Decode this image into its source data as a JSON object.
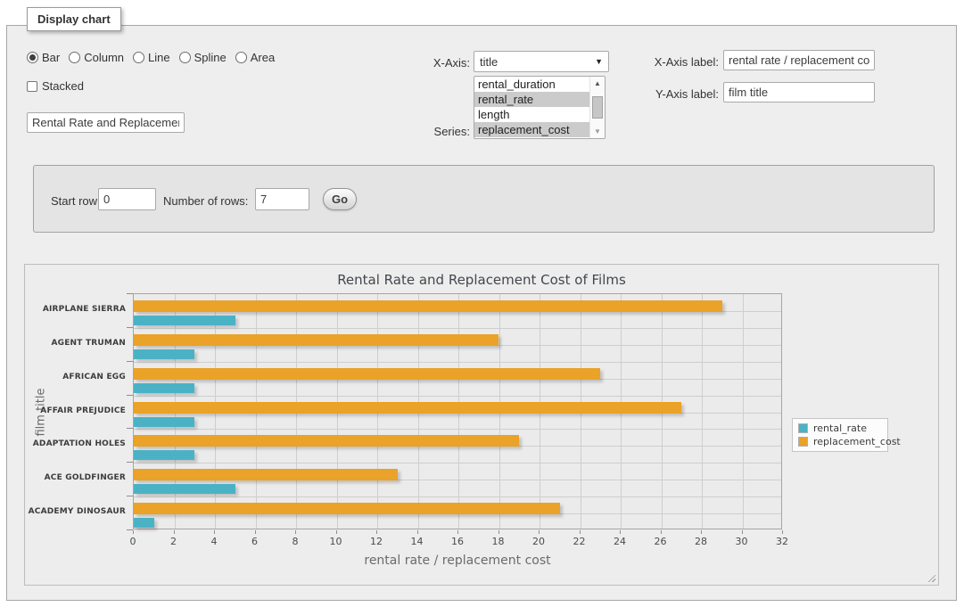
{
  "panel": {
    "legend": "Display chart"
  },
  "icons": {
    "dropdown_arrow": "▼",
    "scroll_up": "▲",
    "scroll_down": "▼"
  },
  "controls": {
    "chart_types": [
      {
        "label": "Bar",
        "selected": true
      },
      {
        "label": "Column",
        "selected": false
      },
      {
        "label": "Line",
        "selected": false
      },
      {
        "label": "Spline",
        "selected": false
      },
      {
        "label": "Area",
        "selected": false
      }
    ],
    "stacked": {
      "label": "Stacked",
      "checked": false
    },
    "title_input": {
      "value": "Rental Rate and Replacement Cost of Films"
    },
    "x_axis": {
      "label": "X-Axis:",
      "selected": "title"
    },
    "series": {
      "label": "Series:",
      "options": [
        {
          "label": "rental_duration",
          "selected": false
        },
        {
          "label": "rental_rate",
          "selected": true
        },
        {
          "label": "length",
          "selected": false
        },
        {
          "label": "replacement_cost",
          "selected": true
        }
      ]
    },
    "x_axis_label": {
      "label": "X-Axis label:",
      "value": "rental rate / replacement cost"
    },
    "y_axis_label": {
      "label": "Y-Axis label:",
      "value": "film title"
    }
  },
  "row_controls": {
    "start_row_label": "Start row:",
    "start_row_value": "0",
    "num_rows_label": "Number of rows:",
    "num_rows_value": "7",
    "go_label": "Go"
  },
  "chart_data": {
    "type": "bar",
    "orientation": "horizontal",
    "title": "Rental Rate and Replacement Cost of Films",
    "xlabel": "rental rate / replacement cost",
    "ylabel": "film title",
    "categories": [
      "AIRPLANE SIERRA",
      "AGENT TRUMAN",
      "AFRICAN EGG",
      "AFFAIR PREJUDICE",
      "ADAPTATION HOLES",
      "ACE GOLDFINGER",
      "ACADEMY DINOSAUR"
    ],
    "series": [
      {
        "name": "rental_rate",
        "color": "#4bb2c5",
        "values": [
          4.99,
          2.99,
          2.99,
          2.99,
          2.99,
          4.99,
          0.99
        ]
      },
      {
        "name": "replacement_cost",
        "color": "#eaa228",
        "values": [
          28.99,
          17.99,
          22.99,
          26.99,
          18.99,
          12.99,
          20.99
        ]
      }
    ],
    "xlim": [
      0,
      32
    ],
    "xticks": [
      0,
      2,
      4,
      6,
      8,
      10,
      12,
      14,
      16,
      18,
      20,
      22,
      24,
      26,
      28,
      30,
      32
    ],
    "grid": true,
    "legend_position": "right"
  }
}
